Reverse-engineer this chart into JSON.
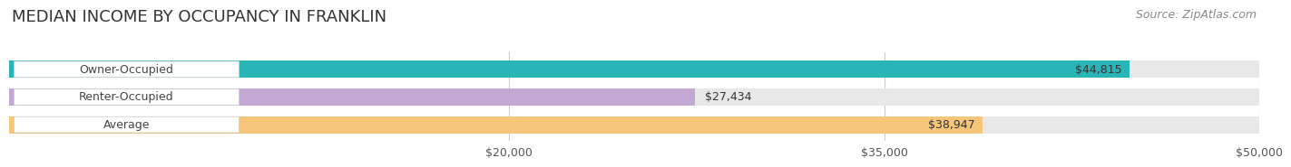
{
  "title": "MEDIAN INCOME BY OCCUPANCY IN FRANKLIN",
  "source": "Source: ZipAtlas.com",
  "categories": [
    "Owner-Occupied",
    "Renter-Occupied",
    "Average"
  ],
  "values": [
    44815,
    27434,
    38947
  ],
  "bar_colors": [
    "#29b5b5",
    "#c4a8d4",
    "#f5c57a"
  ],
  "bar_bg_color": "#e8e8e8",
  "value_labels": [
    "$44,815",
    "$27,434",
    "$38,947"
  ],
  "label_inside": [
    true,
    false,
    true
  ],
  "xlim": [
    0,
    50000
  ],
  "xticks": [
    20000,
    35000,
    50000
  ],
  "xticklabels": [
    "$20,000",
    "$35,000",
    "$50,000"
  ],
  "title_fontsize": 13,
  "source_fontsize": 9,
  "bar_label_fontsize": 9,
  "category_fontsize": 9,
  "bar_height": 0.62,
  "background_color": "#ffffff",
  "grid_color": "#cccccc"
}
